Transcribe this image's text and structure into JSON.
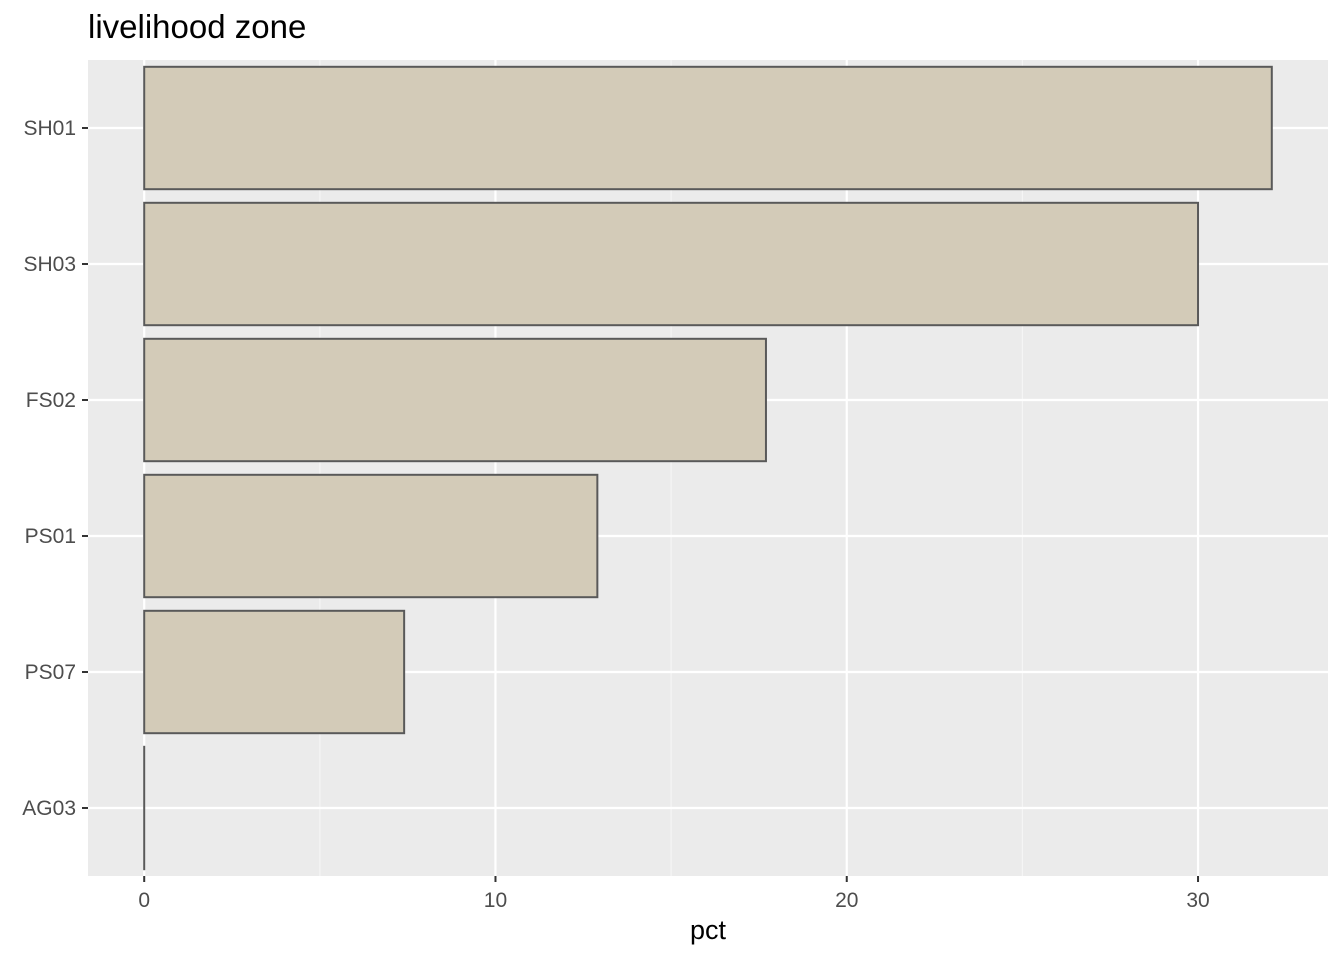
{
  "chart_data": {
    "type": "bar",
    "orientation": "horizontal",
    "title": "livelihood zone",
    "xlabel": "pct",
    "ylabel": "",
    "categories": [
      "SH01",
      "SH03",
      "FS02",
      "PS01",
      "PS07",
      "AG03"
    ],
    "values": [
      32.1,
      30.0,
      17.7,
      12.9,
      7.4,
      0.0
    ],
    "xlim": [
      -1.6,
      33.7
    ],
    "xticks": [
      0,
      10,
      20,
      30
    ],
    "grid": true,
    "legend": "none",
    "colors": {
      "bar_fill": "#d3cbb8",
      "bar_stroke": "#595959",
      "panel_bg": "#ebebeb",
      "grid_major": "#ffffff",
      "grid_minor": "#f5f5f5"
    }
  }
}
